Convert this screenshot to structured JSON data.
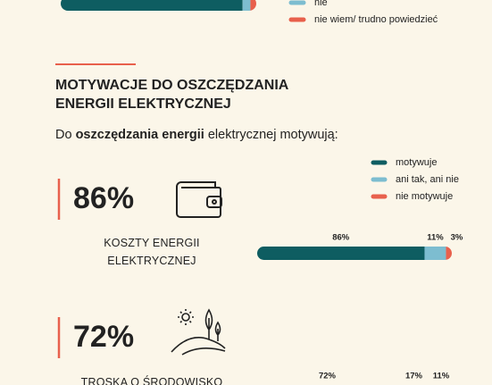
{
  "chart_data": [
    {
      "type": "bar",
      "orientation": "horizontal",
      "stacked": true,
      "xlim": [
        0,
        100
      ],
      "series": [
        {
          "color": "#0e5d61",
          "values": [
            93
          ]
        },
        {
          "name": "nie",
          "color": "#7dbdd0",
          "values": [
            4
          ]
        },
        {
          "name": "nie wiem/ trudno powiedzieć",
          "color": "#e8604c",
          "values": [
            3
          ]
        }
      ]
    },
    {
      "type": "bar",
      "orientation": "horizontal",
      "stacked": true,
      "xlim": [
        0,
        100
      ],
      "title": [
        "MOTYWACJE DO OSZCZĘDZANIA",
        "ENERGII ELEKTRYCZNEJ"
      ],
      "subtitle": [
        "Do ",
        "oszczędzania energii",
        " elektrycznej motywują:"
      ],
      "categories": [
        "KOSZTY ENERGII ELEKTRYCZNEJ",
        "TROSKA O ŚRODOWISKO"
      ],
      "headlines": [
        "86%",
        "72%"
      ],
      "series": [
        {
          "name": "motywuje",
          "color": "#0e5d61",
          "values": [
            86,
            72
          ],
          "value_labels": [
            "86%",
            "72%"
          ]
        },
        {
          "name": "ani tak, ani nie",
          "color": "#7dbdd0",
          "values": [
            11,
            17
          ],
          "value_labels": [
            "11%",
            "17%"
          ]
        },
        {
          "name": "nie motywuje",
          "color": "#e8604c",
          "values": [
            3,
            11
          ],
          "value_labels": [
            "3%",
            "11%"
          ]
        }
      ]
    }
  ]
}
